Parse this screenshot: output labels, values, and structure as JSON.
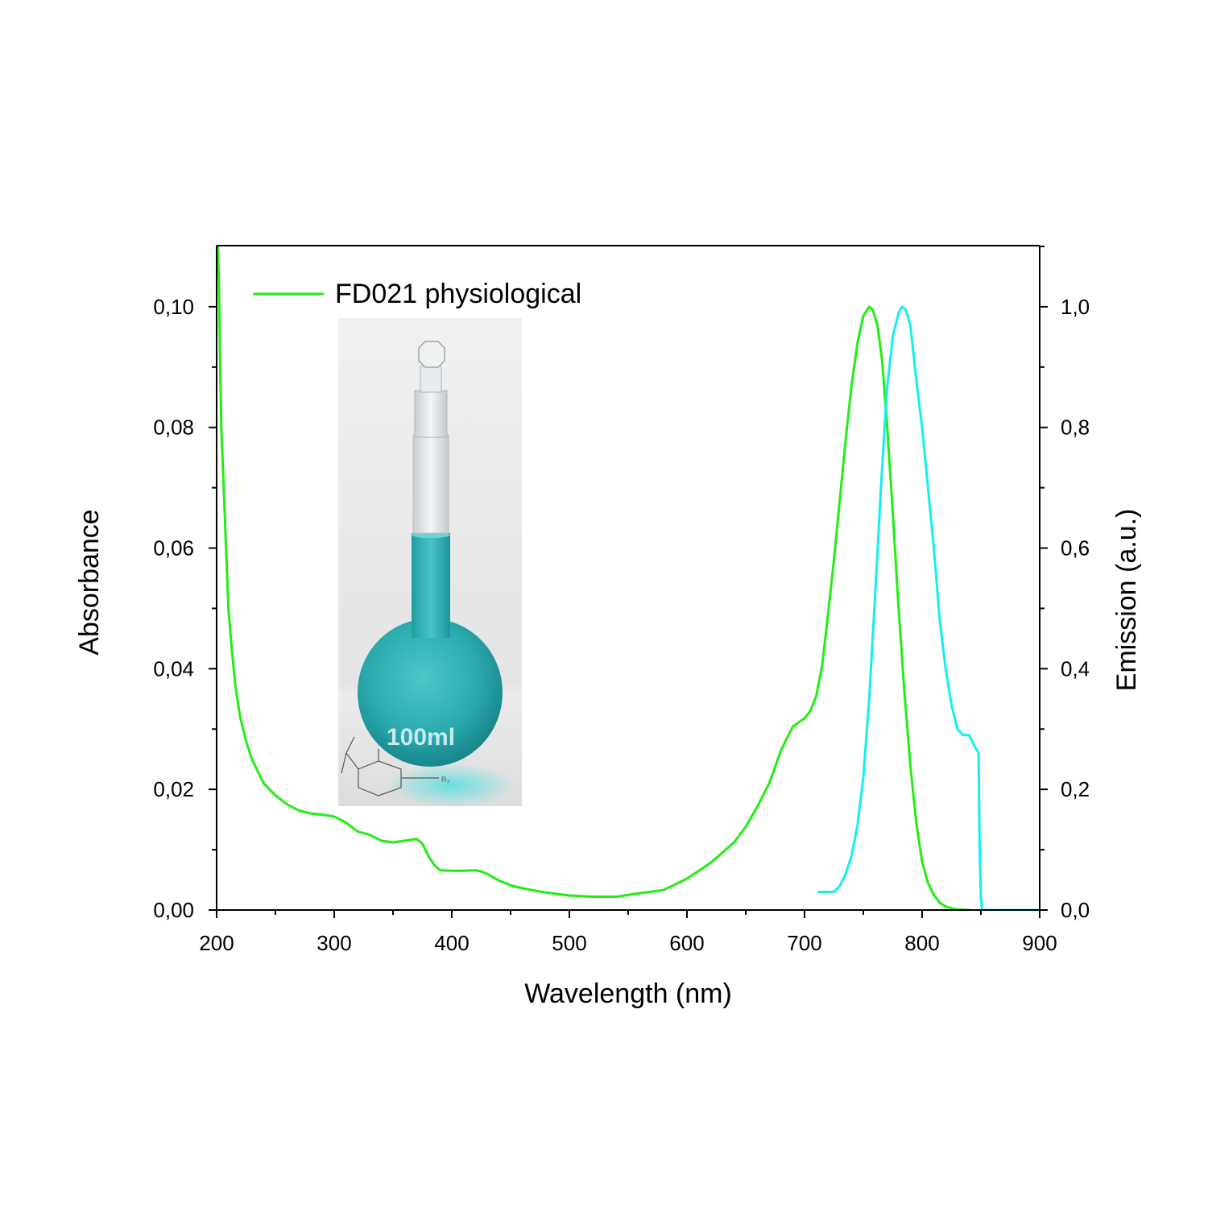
{
  "chart_data": {
    "type": "line",
    "xlabel": "Wavelength (nm)",
    "ylabel": "Absorbance",
    "y2label": "Emission (a.u.)",
    "xlim": [
      200,
      900
    ],
    "ylim": [
      0,
      0.11
    ],
    "y2lim": [
      0,
      1.1
    ],
    "x_ticks": [
      200,
      300,
      400,
      500,
      600,
      700,
      800,
      900
    ],
    "x_tick_labels": [
      "200",
      "300",
      "400",
      "500",
      "600",
      "700",
      "800",
      "900"
    ],
    "y_ticks": [
      0,
      0.02,
      0.04,
      0.06,
      0.08,
      0.1
    ],
    "y_tick_labels": [
      "0,00",
      "0,02",
      "0,04",
      "0,06",
      "0,08",
      "0,10"
    ],
    "y2_ticks": [
      0,
      0.2,
      0.4,
      0.6,
      0.8,
      1.0
    ],
    "y2_tick_labels": [
      "0,0",
      "0,2",
      "0,4",
      "0,6",
      "0,8",
      "1,0"
    ],
    "grid": false,
    "legend_position": "top-left",
    "series": [
      {
        "name": "FD021 physiological",
        "axis": "left",
        "color": "#22ee11",
        "x": [
          201,
          202,
          203,
          204,
          206,
          208,
          210,
          213,
          216,
          220,
          225,
          230,
          235,
          240,
          250,
          260,
          270,
          280,
          290,
          300,
          310,
          320,
          330,
          340,
          350,
          360,
          370,
          375,
          380,
          385,
          390,
          400,
          410,
          420,
          425,
          430,
          440,
          450,
          460,
          480,
          500,
          520,
          540,
          560,
          580,
          600,
          620,
          640,
          650,
          660,
          670,
          680,
          690,
          700,
          705,
          710,
          715,
          720,
          725,
          730,
          735,
          740,
          745,
          750,
          755,
          758,
          762,
          766,
          770,
          775,
          780,
          785,
          790,
          795,
          800,
          805,
          810,
          815,
          820,
          825,
          830,
          840
        ],
        "values": [
          0.11,
          0.104,
          0.09,
          0.08,
          0.07,
          0.06,
          0.05,
          0.043,
          0.037,
          0.032,
          0.028,
          0.025,
          0.023,
          0.021,
          0.019,
          0.0175,
          0.0165,
          0.016,
          0.0158,
          0.0155,
          0.0145,
          0.013,
          0.0125,
          0.0115,
          0.0112,
          0.0115,
          0.0118,
          0.011,
          0.009,
          0.0075,
          0.0066,
          0.0065,
          0.0065,
          0.0066,
          0.0064,
          0.006,
          0.0049,
          0.0041,
          0.0036,
          0.0029,
          0.0024,
          0.0022,
          0.0022,
          0.0028,
          0.0033,
          0.0052,
          0.0078,
          0.0112,
          0.0138,
          0.0172,
          0.021,
          0.0265,
          0.0304,
          0.0318,
          0.033,
          0.0355,
          0.0405,
          0.049,
          0.058,
          0.068,
          0.078,
          0.087,
          0.094,
          0.0985,
          0.1,
          0.0995,
          0.097,
          0.091,
          0.081,
          0.066,
          0.05,
          0.036,
          0.024,
          0.0145,
          0.008,
          0.0045,
          0.0025,
          0.0012,
          0.0006,
          0.0003,
          0.0001,
          0.0
        ]
      },
      {
        "axis": "right",
        "color": "#11f0f0",
        "x": [
          712,
          720,
          725,
          730,
          735,
          740,
          745,
          750,
          755,
          760,
          765,
          770,
          775,
          780,
          783,
          786,
          790,
          795,
          800,
          805,
          810,
          815,
          820,
          825,
          830,
          835,
          840,
          845,
          848,
          849,
          850,
          851,
          852,
          860,
          880,
          900
        ],
        "values": [
          0.03,
          0.03,
          0.03,
          0.04,
          0.06,
          0.09,
          0.14,
          0.22,
          0.35,
          0.52,
          0.7,
          0.86,
          0.95,
          0.99,
          1.0,
          0.995,
          0.97,
          0.88,
          0.8,
          0.7,
          0.6,
          0.48,
          0.4,
          0.34,
          0.3,
          0.29,
          0.29,
          0.27,
          0.26,
          0.1,
          0.02,
          0.0,
          0.0,
          0.0,
          0.0,
          0.0
        ]
      }
    ]
  },
  "inset": {
    "flask_marking": "100ml"
  }
}
